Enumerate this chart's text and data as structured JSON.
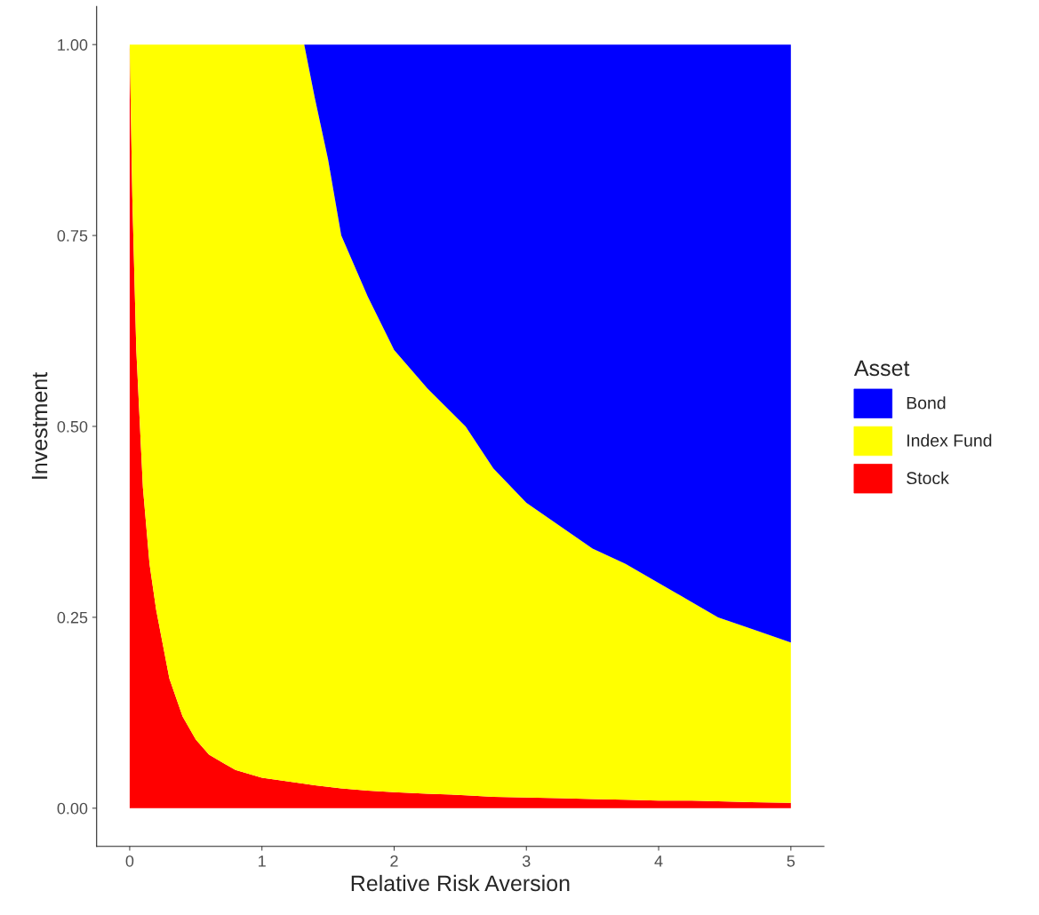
{
  "chart_data": {
    "type": "area",
    "stacked": true,
    "xlabel": "Relative Risk Aversion",
    "ylabel": "Investment",
    "legend_title": "Asset",
    "legend": "right",
    "grid": false,
    "x": [
      0,
      0.02,
      0.05,
      0.1,
      0.15,
      0.2,
      0.3,
      0.4,
      0.5,
      0.6,
      0.8,
      1.0,
      1.32,
      1.4,
      1.5,
      1.6,
      1.8,
      2,
      2.25,
      2.54,
      2.75,
      3,
      3.25,
      3.5,
      3.75,
      4,
      4.25,
      4.45,
      4.7,
      5
    ],
    "series": [
      {
        "name": "Stock",
        "color": "#ff0000",
        "values": [
          1.0,
          0.8,
          0.6,
          0.42,
          0.32,
          0.26,
          0.17,
          0.12,
          0.09,
          0.07,
          0.05,
          0.04,
          0.032,
          0.03,
          0.028,
          0.026,
          0.023,
          0.021,
          0.019,
          0.017,
          0.015,
          0.014,
          0.013,
          0.012,
          0.011,
          0.01,
          0.01,
          0.009,
          0.008,
          0.007
        ]
      },
      {
        "name": "Index Fund",
        "color": "#ffff00",
        "values": [
          0,
          0.2,
          0.4,
          0.58,
          0.68,
          0.74,
          0.83,
          0.88,
          0.91,
          0.93,
          0.95,
          0.96,
          0.968,
          0.9,
          0.822,
          0.724,
          0.647,
          0.579,
          0.531,
          0.483,
          0.43,
          0.386,
          0.357,
          0.328,
          0.309,
          0.285,
          0.26,
          0.241,
          0.227,
          0.21
        ]
      },
      {
        "name": "Bond",
        "color": "#0000ff",
        "values": [
          0,
          0,
          0,
          0,
          0,
          0,
          0,
          0,
          0,
          0,
          0,
          0,
          0,
          0.07,
          0.15,
          0.25,
          0.33,
          0.4,
          0.45,
          0.5,
          0.555,
          0.6,
          0.63,
          0.66,
          0.68,
          0.705,
          0.73,
          0.75,
          0.765,
          0.783
        ]
      }
    ],
    "xlim": [
      -0.25,
      5.25
    ],
    "ylim": [
      -0.05,
      1.05
    ],
    "xticks": [
      0,
      1,
      2,
      3,
      4,
      5
    ],
    "yticks": [
      {
        "value": 0,
        "label": "0.00"
      },
      {
        "value": 0.25,
        "label": "0.25"
      },
      {
        "value": 0.5,
        "label": "0.50"
      },
      {
        "value": 0.75,
        "label": "0.75"
      },
      {
        "value": 1,
        "label": "1.00"
      }
    ]
  }
}
